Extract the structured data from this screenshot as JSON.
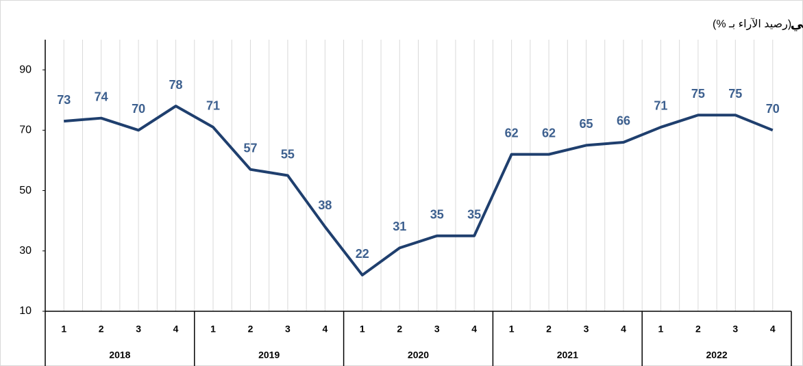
{
  "chart_data": {
    "type": "line",
    "title": "المؤشر الحالي",
    "subtitle": "(رصيد الآراء بـ %)",
    "categories": [
      "1",
      "2",
      "3",
      "4",
      "1",
      "2",
      "3",
      "4",
      "1",
      "2",
      "3",
      "4",
      "1",
      "2",
      "3",
      "4",
      "1",
      "2",
      "3",
      "4"
    ],
    "groups": [
      "2018",
      "2019",
      "2020",
      "2021",
      "2022"
    ],
    "series": [
      {
        "name": "المؤشر الحالي",
        "color": "#1f3f6e",
        "values": [
          73,
          74,
          70,
          78,
          71,
          57,
          55,
          38,
          22,
          31,
          35,
          35,
          62,
          62,
          65,
          66,
          71,
          75,
          75,
          70
        ]
      }
    ],
    "ylim": [
      10,
      100
    ],
    "yticks": [
      10,
      30,
      50,
      70,
      90
    ],
    "grid": true
  }
}
